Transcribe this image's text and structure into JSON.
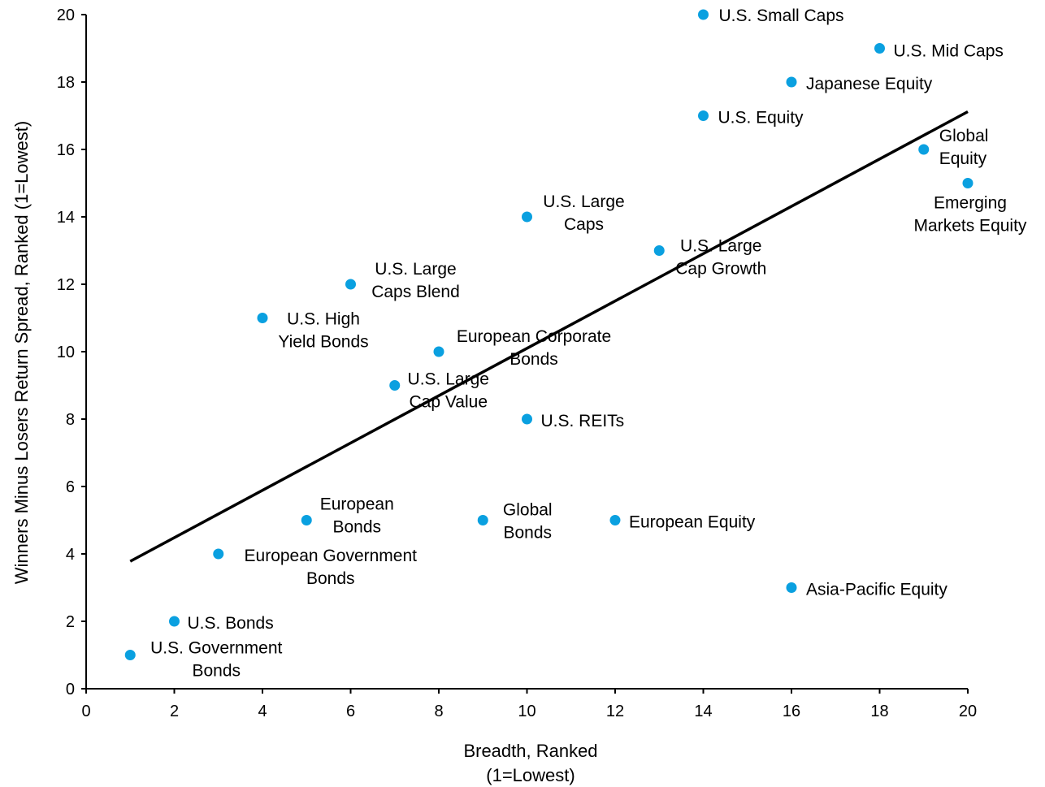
{
  "chart_data": {
    "type": "scatter",
    "xlabel_lines": [
      "Breadth, Ranked",
      "(1=Lowest)"
    ],
    "ylabel": "Winners Minus Losers Return Spread, Ranked (1=Lowest)",
    "xlim": [
      0,
      20
    ],
    "ylim": [
      0,
      20
    ],
    "xticks": [
      "0",
      "2",
      "4",
      "6",
      "8",
      "10",
      "12",
      "14",
      "16",
      "18",
      "20"
    ],
    "yticks": [
      "0",
      "2",
      "4",
      "6",
      "8",
      "10",
      "12",
      "14",
      "16",
      "18",
      "20"
    ],
    "grid": false,
    "point_color": "#0aa0e0",
    "trendline": {
      "x": [
        1,
        20
      ],
      "y": [
        3.78,
        17.12
      ],
      "color": "#000000"
    },
    "points": [
      {
        "lines": [
          "U.S. Small Caps"
        ],
        "x": 14,
        "y": 20
      },
      {
        "lines": [
          "U.S. Mid Caps"
        ],
        "x": 18,
        "y": 19
      },
      {
        "lines": [
          "Japanese Equity"
        ],
        "x": 16,
        "y": 18
      },
      {
        "lines": [
          "U.S. Equity"
        ],
        "x": 14,
        "y": 17
      },
      {
        "lines": [
          "Global",
          "Equity"
        ],
        "x": 19,
        "y": 16
      },
      {
        "lines": [
          "Emerging",
          "Markets Equity"
        ],
        "x": 20,
        "y": 15
      },
      {
        "lines": [
          "U.S. Large",
          "Caps"
        ],
        "x": 10,
        "y": 14
      },
      {
        "lines": [
          "U.S. Large",
          "Cap Growth"
        ],
        "x": 13,
        "y": 13
      },
      {
        "lines": [
          "U.S. Large",
          "Caps Blend"
        ],
        "x": 6,
        "y": 12
      },
      {
        "lines": [
          "U.S. High",
          "Yield Bonds"
        ],
        "x": 4,
        "y": 11
      },
      {
        "lines": [
          "European Corporate",
          "Bonds"
        ],
        "x": 8,
        "y": 10
      },
      {
        "lines": [
          "U.S. Large",
          "Cap Value"
        ],
        "x": 7,
        "y": 9
      },
      {
        "lines": [
          "U.S. REITs"
        ],
        "x": 10,
        "y": 8
      },
      {
        "lines": [
          "European",
          "Bonds"
        ],
        "x": 5,
        "y": 5
      },
      {
        "lines": [
          "Global",
          "Bonds"
        ],
        "x": 9,
        "y": 5
      },
      {
        "lines": [
          "European Equity"
        ],
        "x": 12,
        "y": 5
      },
      {
        "lines": [
          "European Government",
          "Bonds"
        ],
        "x": 3,
        "y": 4
      },
      {
        "lines": [
          "Asia-Pacific Equity"
        ],
        "x": 16,
        "y": 3
      },
      {
        "lines": [
          "U.S. Bonds"
        ],
        "x": 2,
        "y": 2
      },
      {
        "lines": [
          "U.S. Government",
          "Bonds"
        ],
        "x": 1,
        "y": 1
      }
    ]
  }
}
